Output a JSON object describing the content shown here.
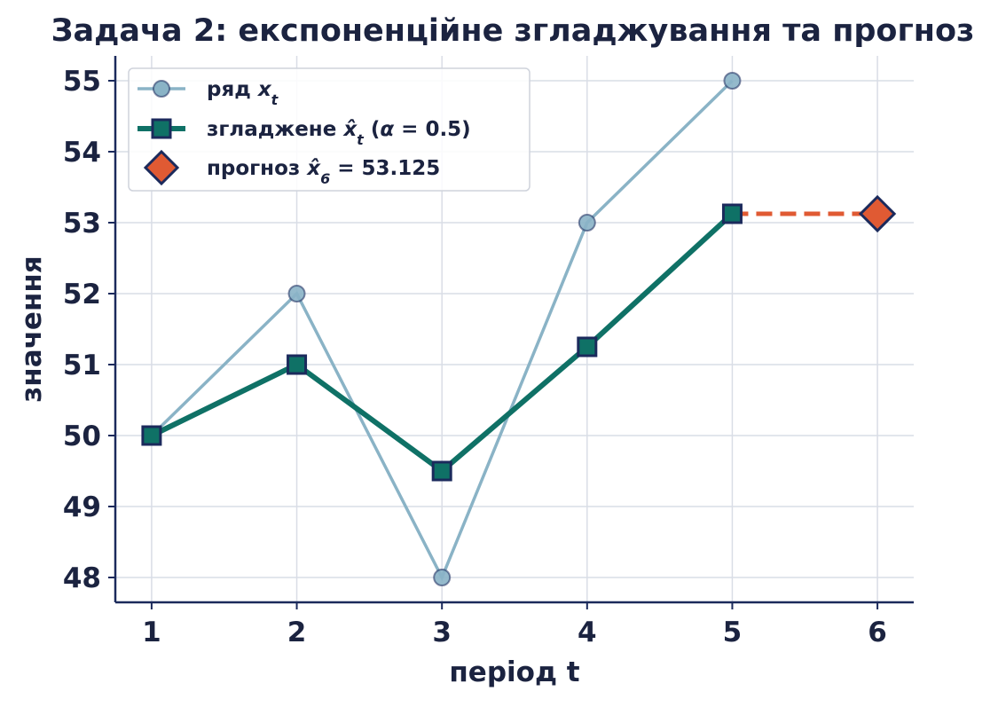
{
  "chart_data": {
    "type": "line",
    "title": "Задача 2: експоненційне згладжування та прогноз",
    "xlabel": "період t",
    "ylabel": "значення",
    "x_ticks": [
      1,
      2,
      3,
      4,
      5,
      6
    ],
    "y_ticks": [
      48,
      49,
      50,
      51,
      52,
      53,
      54,
      55
    ],
    "xlim": [
      0.75,
      6.25
    ],
    "ylim": [
      47.65,
      55.35
    ],
    "grid": true,
    "legend_position": "top-left",
    "series": [
      {
        "name": "ряд x_t",
        "type": "line",
        "marker": "circle",
        "color": "#8ab3c6",
        "x": [
          1,
          2,
          3,
          4,
          5
        ],
        "y": [
          50,
          52,
          48,
          53,
          55
        ]
      },
      {
        "name": "згладжене x̂_t (α = 0.5)",
        "type": "line",
        "marker": "square",
        "color": "#0f7166",
        "x": [
          1,
          2,
          3,
          4,
          5
        ],
        "y": [
          50,
          51,
          49.5,
          51.25,
          53.125
        ]
      },
      {
        "name": "прогноз x̂_6 = 53.125",
        "type": "scatter",
        "marker": "diamond",
        "color": "#e05a33",
        "x": [
          6
        ],
        "y": [
          53.125
        ]
      }
    ],
    "forecast_connector": {
      "style": "dashed",
      "color": "#e05a33",
      "from": [
        5,
        53.125
      ],
      "to": [
        6,
        53.125
      ]
    },
    "colors": {
      "text": "#1b2340",
      "marker_edge": "#1b2a5c",
      "grid": "#d9dde6"
    }
  }
}
